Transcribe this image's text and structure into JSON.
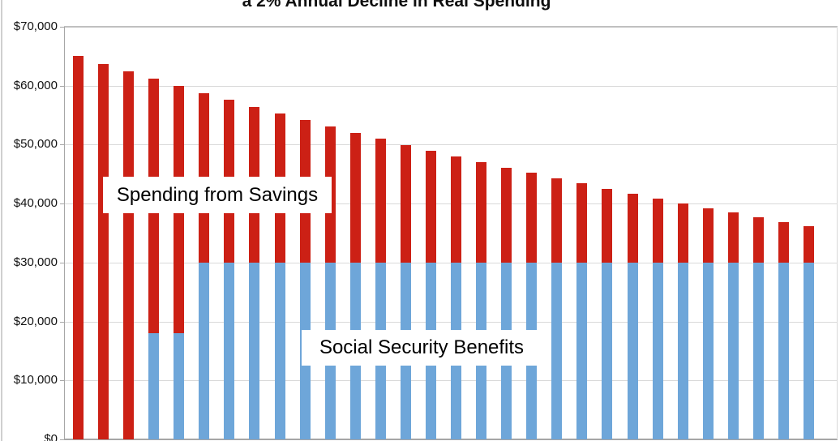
{
  "title": "a 2% Annual Decline in Real Spending",
  "annotations": {
    "savings_label": "Spending from Savings",
    "benefits_label": "Social Security Benefits"
  },
  "colors": {
    "savings_red": "#cc2015",
    "benefits_blue": "#6ea6d9",
    "gridline": "#d9d9d9",
    "top_border": "#c0c0c0",
    "axis": "#a6a6a6"
  },
  "y_axis": {
    "ticks": [
      "$70,000",
      "$60,000",
      "$50,000",
      "$40,000",
      "$30,000",
      "$20,000",
      "$10,000",
      "$0"
    ],
    "min": 0,
    "max": 70000,
    "step": 10000
  },
  "chart_data": {
    "type": "bar",
    "stacked": true,
    "title": "a 2% Annual Decline in Real Spending",
    "n_bars": 30,
    "x_axis_labels_visible": false,
    "ylabel": "",
    "xlabel": "",
    "ylim": [
      0,
      70000
    ],
    "grid": true,
    "series": [
      {
        "name": "Social Security Benefits",
        "color": "#6ea6d9",
        "values": [
          0,
          0,
          0,
          18000,
          18000,
          30000,
          30000,
          30000,
          30000,
          30000,
          30000,
          30000,
          30000,
          30000,
          30000,
          30000,
          30000,
          30000,
          30000,
          30000,
          30000,
          30000,
          30000,
          30000,
          30000,
          30000,
          30000,
          30000,
          30000,
          30000
        ]
      },
      {
        "name": "Spending from Savings",
        "color": "#cc2015",
        "values": [
          65000,
          63700,
          62426,
          43177,
          41954,
          28755,
          27580,
          26428,
          25300,
          24194,
          23110,
          22048,
          21007,
          19987,
          18987,
          18007,
          17047,
          16106,
          15184,
          14281,
          13395,
          12527,
          11676,
          10843,
          10026,
          9225,
          8441,
          7672,
          6919,
          6180
        ]
      }
    ],
    "totals_note": "totals equal 65000 times 0.98 to the power of year minus 1, for years 1 through 30"
  }
}
